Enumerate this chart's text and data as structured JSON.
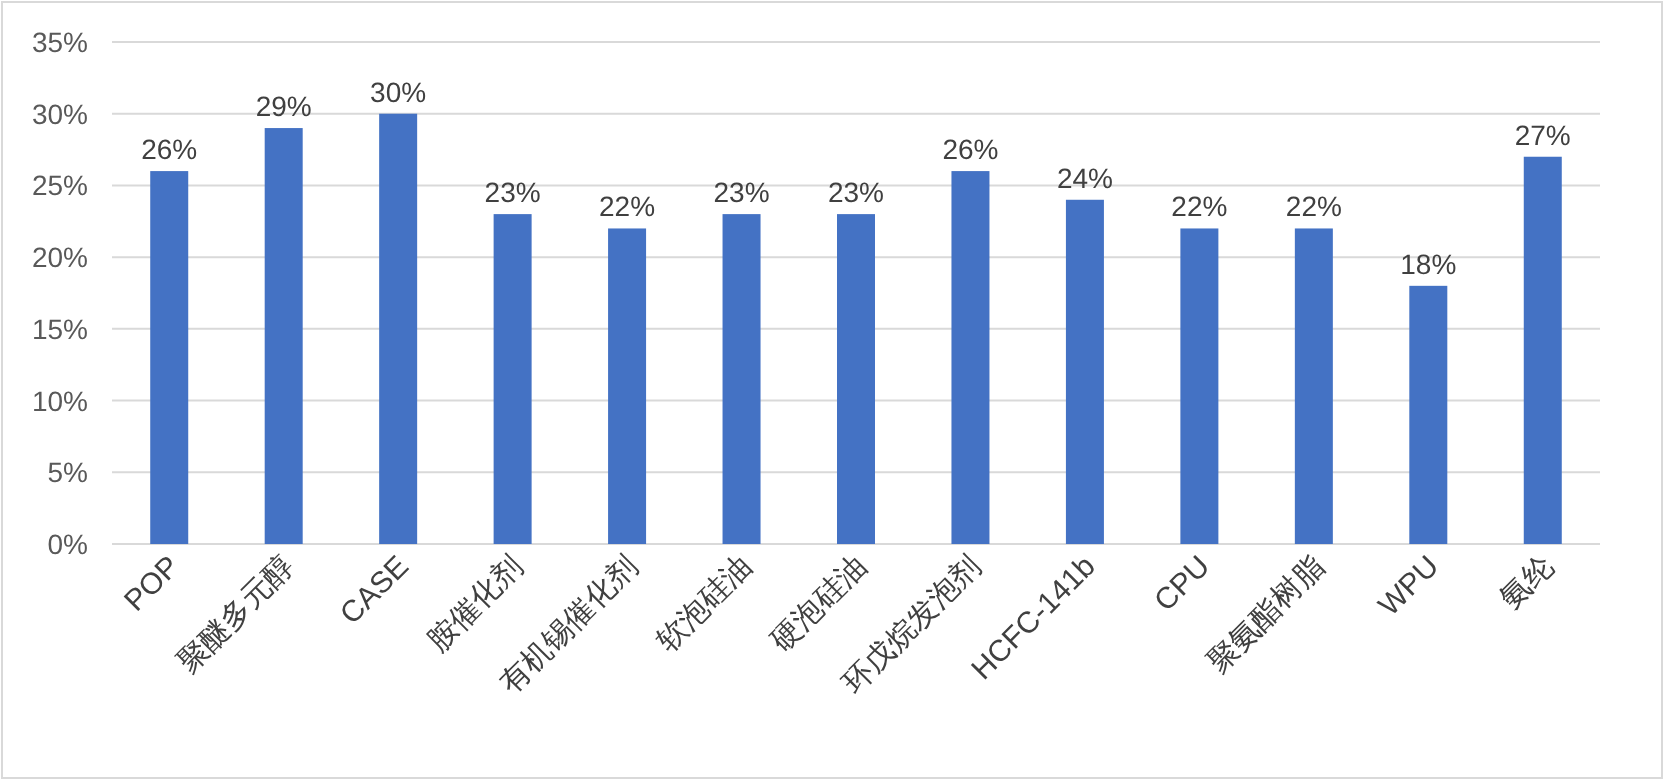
{
  "chart_data": {
    "type": "bar",
    "categories": [
      "POP",
      "聚醚多元醇",
      "CASE",
      "胺催化剂",
      "有机锡催化剂",
      "软泡硅油",
      "硬泡硅油",
      "环戊烷发泡剂",
      "HCFC-141b",
      "CPU",
      "聚氨酯树脂",
      "WPU",
      "氨纶"
    ],
    "values": [
      26,
      29,
      30,
      23,
      22,
      23,
      23,
      26,
      24,
      22,
      22,
      18,
      27
    ],
    "value_labels": [
      "26%",
      "29%",
      "30%",
      "23%",
      "22%",
      "23%",
      "23%",
      "26%",
      "24%",
      "22%",
      "22%",
      "18%",
      "27%"
    ],
    "color": "#4472c4",
    "ylim": [
      0,
      35
    ],
    "yticks": [
      {
        "value": 0,
        "label": "0%"
      },
      {
        "value": 5,
        "label": "5%"
      },
      {
        "value": 10,
        "label": "10%"
      },
      {
        "value": 15,
        "label": "15%"
      },
      {
        "value": 20,
        "label": "20%"
      },
      {
        "value": 25,
        "label": "25%"
      },
      {
        "value": 30,
        "label": "30%"
      },
      {
        "value": 35,
        "label": "35%"
      }
    ],
    "grid": "y"
  }
}
